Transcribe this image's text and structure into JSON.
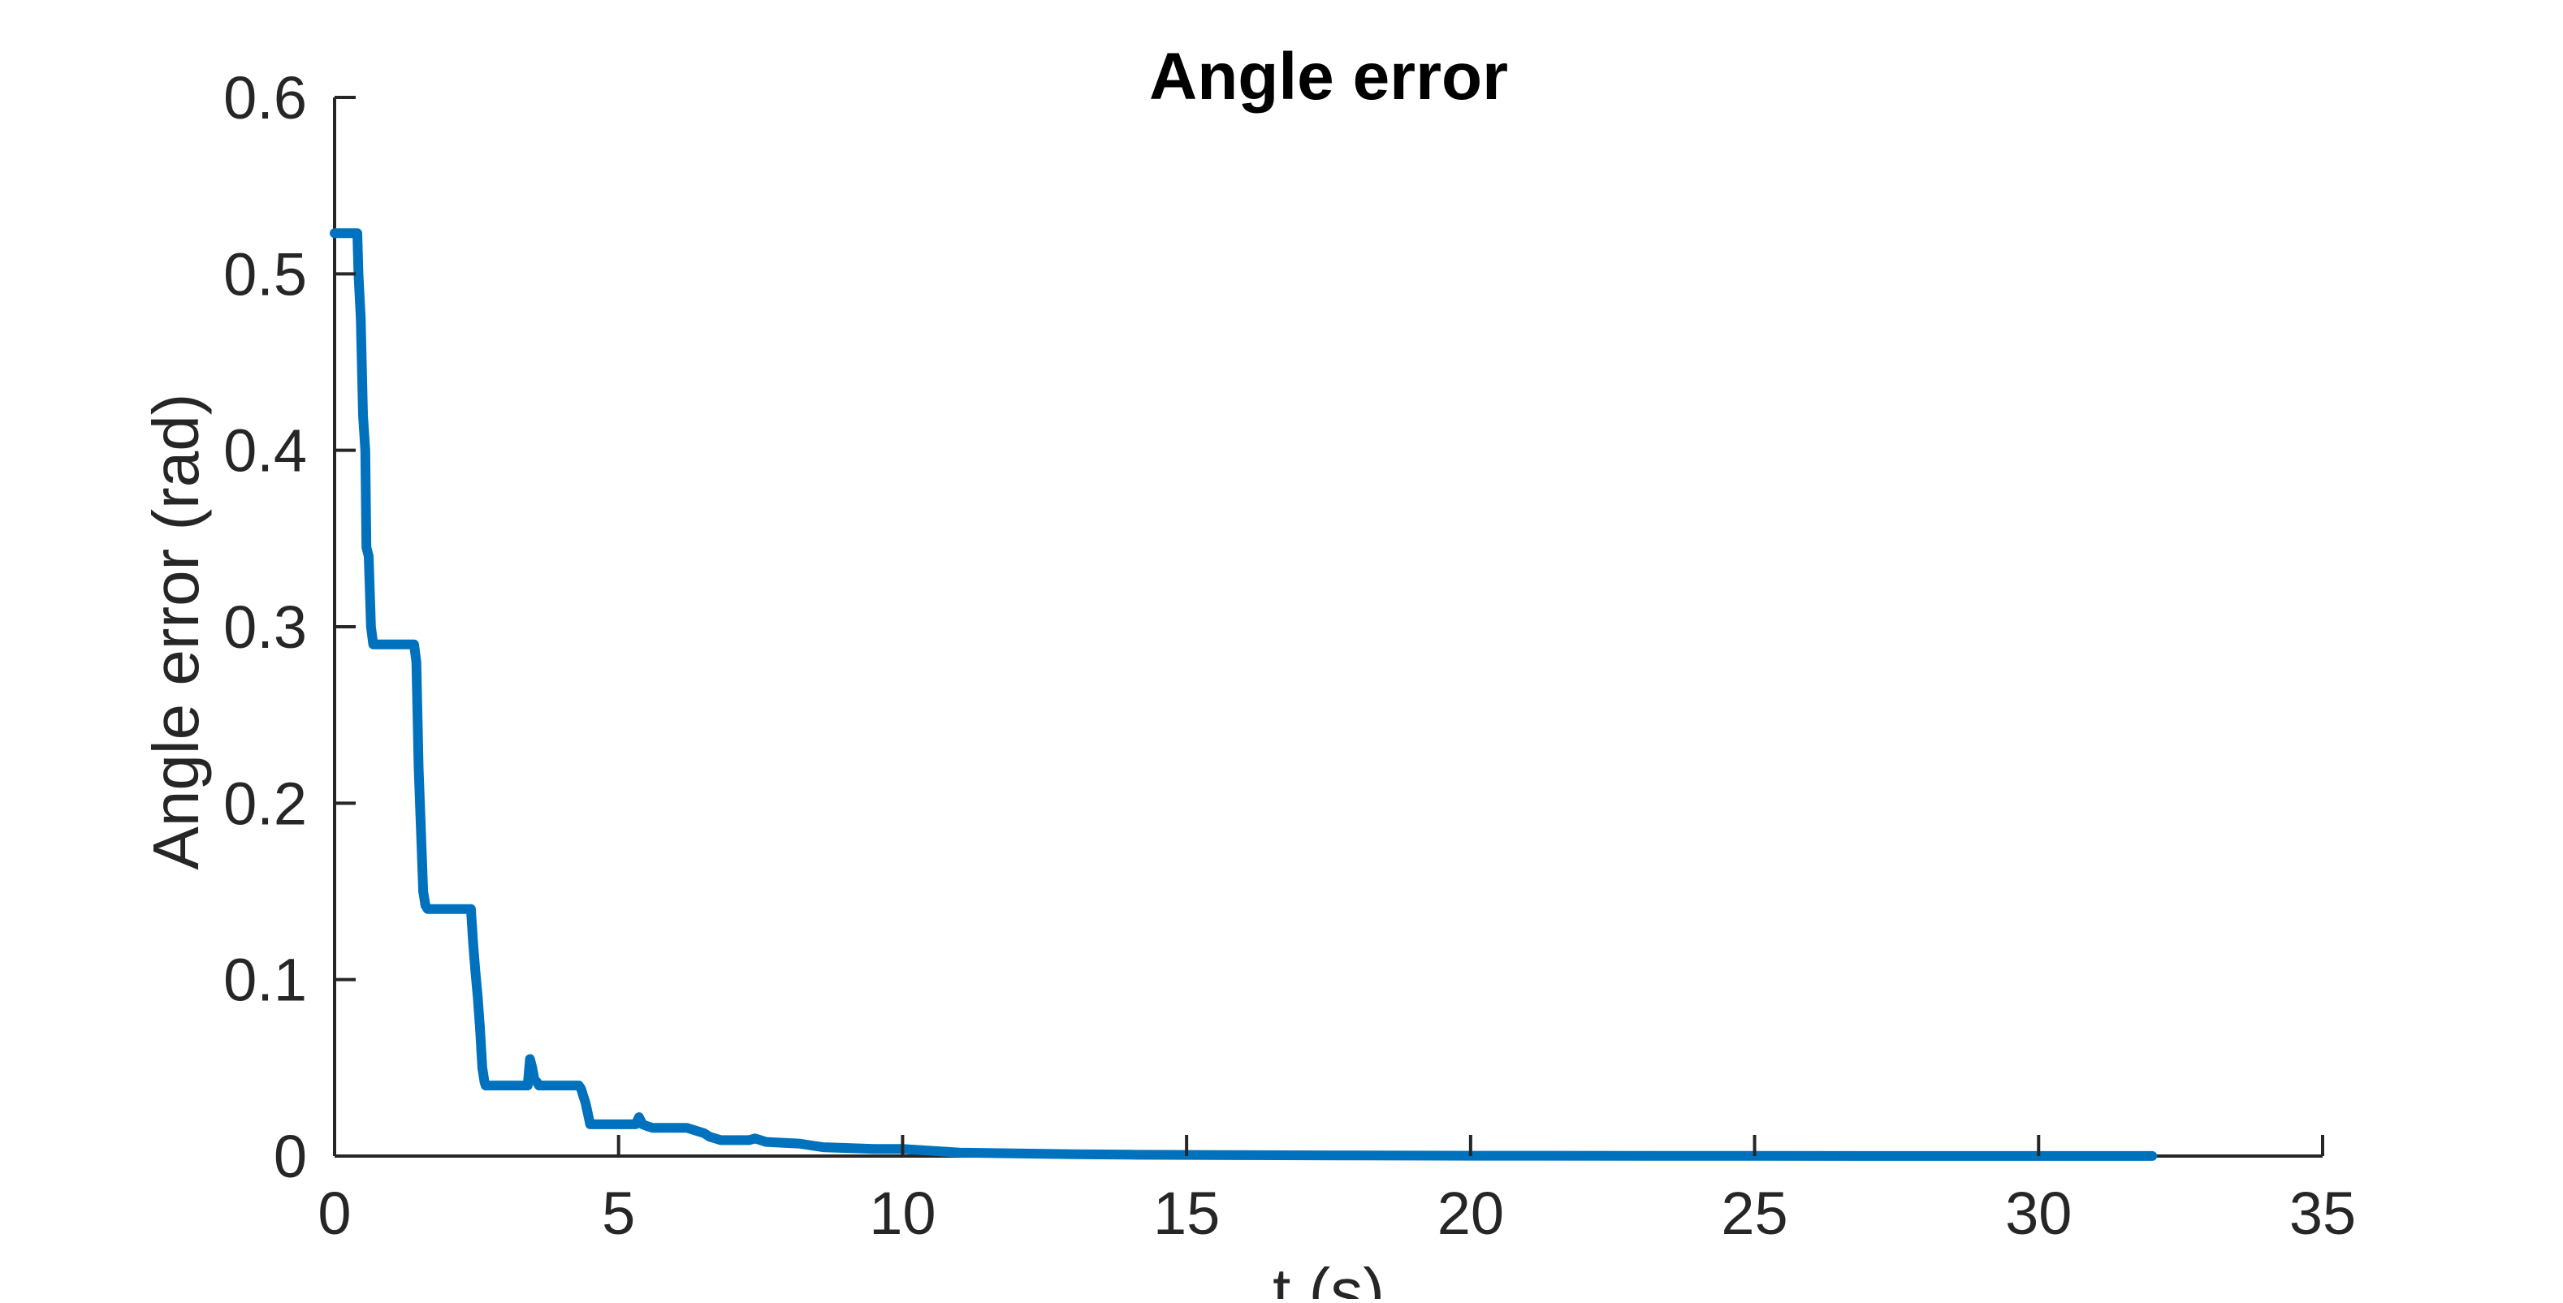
{
  "chart_data": {
    "type": "line",
    "title": "Angle error",
    "xlabel": "t (s)",
    "ylabel": "Angle error (rad)",
    "xlim": [
      0,
      35
    ],
    "ylim": [
      0,
      0.6
    ],
    "xticks": [
      0,
      5,
      10,
      15,
      20,
      25,
      30,
      35
    ],
    "yticks": [
      0,
      0.1,
      0.2,
      0.3,
      0.4,
      0.5,
      0.6
    ],
    "xtick_labels": [
      "0",
      "5",
      "10",
      "15",
      "20",
      "25",
      "30",
      "35"
    ],
    "ytick_labels": [
      "0",
      "0.1",
      "0.2",
      "0.3",
      "0.4",
      "0.5",
      "0.6"
    ],
    "grid": false,
    "line_color": "#0072BD",
    "axis_color": "#262626",
    "series": [
      {
        "x": [
          0,
          0.4,
          0.42,
          0.46,
          0.5,
          0.54,
          0.56,
          0.6,
          0.64,
          0.68,
          0.7,
          1.4,
          1.44,
          1.48,
          1.52,
          1.56,
          1.6,
          1.64,
          1.7,
          2.4,
          2.44,
          2.48,
          2.52,
          2.56,
          2.6,
          2.64,
          2.66,
          2.7,
          3.4,
          3.44,
          3.48,
          3.52,
          3.56,
          3.6,
          4.3,
          4.34,
          4.38,
          4.42,
          4.46,
          4.5,
          5.3,
          5.36,
          5.42,
          5.5,
          5.6,
          6.2,
          6.5,
          6.6,
          6.8,
          7.3,
          7.4,
          7.6,
          8.2,
          8.4,
          8.6,
          9.5,
          10.0,
          10.5,
          11.0,
          12.0,
          13.0,
          14.0,
          16.0,
          18.0,
          20.0,
          25.0,
          30.0,
          32.0
        ],
        "y": [
          0.523,
          0.523,
          0.5,
          0.475,
          0.42,
          0.4,
          0.345,
          0.34,
          0.3,
          0.29,
          0.29,
          0.29,
          0.28,
          0.22,
          0.185,
          0.15,
          0.142,
          0.14,
          0.14,
          0.14,
          0.12,
          0.104,
          0.09,
          0.072,
          0.05,
          0.042,
          0.04,
          0.04,
          0.04,
          0.055,
          0.05,
          0.043,
          0.042,
          0.04,
          0.04,
          0.038,
          0.034,
          0.03,
          0.024,
          0.018,
          0.018,
          0.022,
          0.018,
          0.017,
          0.016,
          0.016,
          0.013,
          0.011,
          0.009,
          0.009,
          0.01,
          0.008,
          0.007,
          0.006,
          0.005,
          0.004,
          0.004,
          0.003,
          0.002,
          0.0015,
          0.001,
          0.0008,
          0.0005,
          0.0003,
          0.0002,
          0.0001,
          5e-05,
          5e-05
        ]
      }
    ]
  }
}
